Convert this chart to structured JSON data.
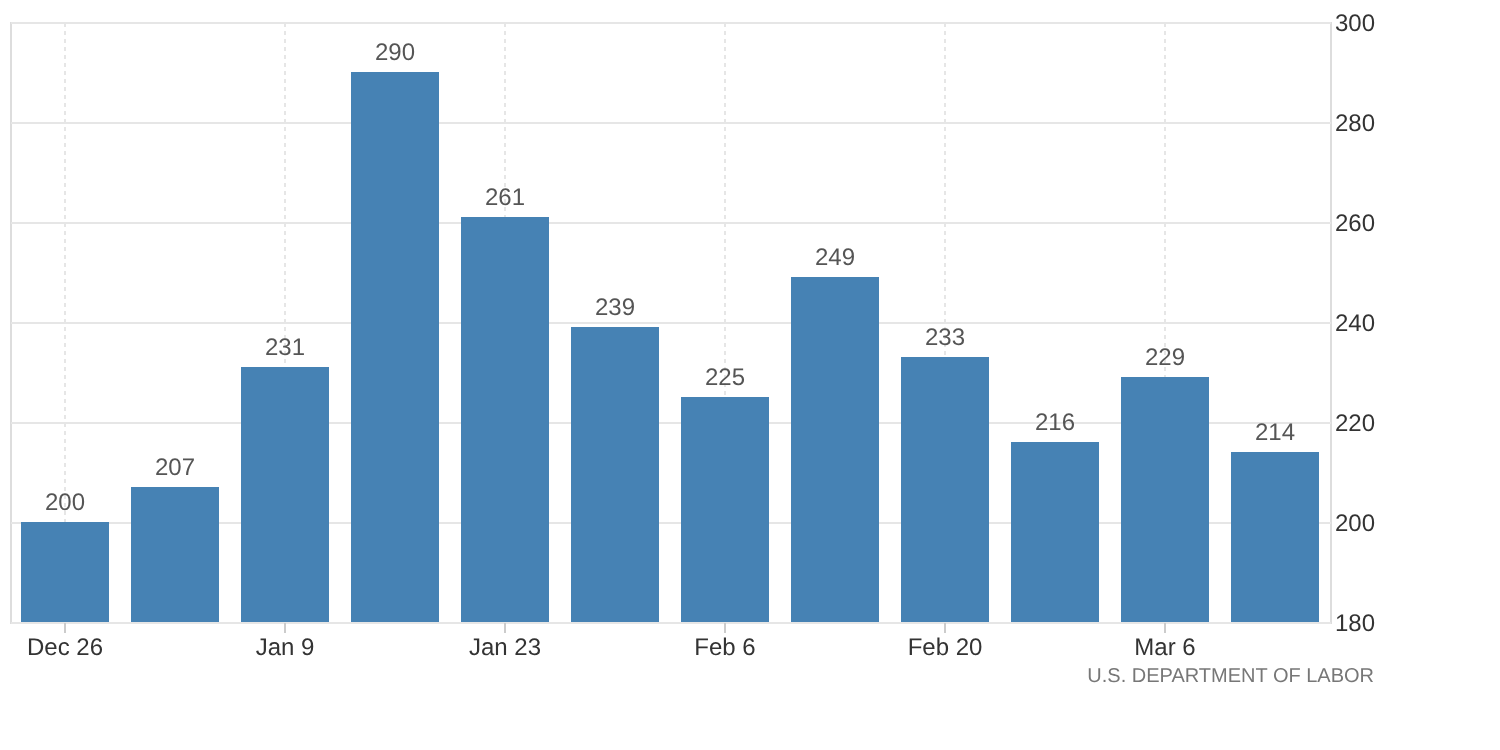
{
  "chart_data": {
    "type": "bar",
    "categories": [
      "Dec 26",
      null,
      "Jan 9",
      null,
      "Jan 23",
      null,
      "Feb 6",
      null,
      "Feb 20",
      null,
      "Mar 6",
      null
    ],
    "values": [
      200,
      207,
      231,
      290,
      261,
      239,
      225,
      249,
      233,
      216,
      229,
      214
    ],
    "color": "#4682b4",
    "ylim": [
      180,
      300
    ],
    "yticks": [
      180,
      200,
      220,
      240,
      260,
      280,
      300
    ],
    "grid": true,
    "data_labels": true,
    "annotations": [
      "U.S. DEPARTMENT OF LABOR"
    ]
  }
}
